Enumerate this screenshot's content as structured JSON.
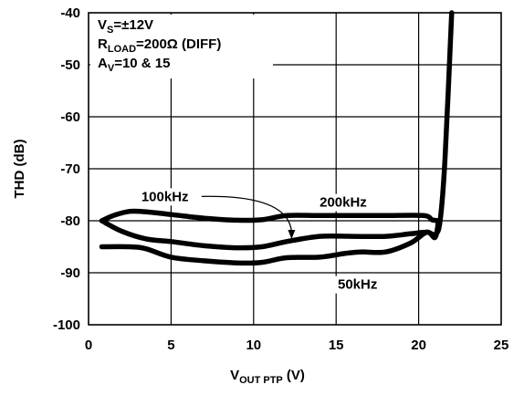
{
  "chart_data": {
    "type": "line",
    "xlabel": {
      "main": "V",
      "sub": "OUT PTP",
      "tail": " (V)"
    },
    "ylabel": "THD (dB)",
    "xlim": [
      0,
      25
    ],
    "ylim": [
      -100,
      -40
    ],
    "xticks": [
      0,
      5,
      10,
      15,
      20,
      25
    ],
    "yticks": [
      -40,
      -50,
      -60,
      -70,
      -80,
      -90,
      -100
    ],
    "xtick_labels": [
      "0",
      "5",
      "10",
      "15",
      "20",
      "25"
    ],
    "ytick_labels": [
      "-40",
      "-50",
      "-60",
      "-70",
      "-80",
      "-90",
      "-100"
    ],
    "grid": true,
    "conditions": [
      {
        "main": "V",
        "sub": "S",
        "tail": "=±12V"
      },
      {
        "main": "R",
        "sub": "LOAD",
        "tail": "=200Ω (DIFF)"
      },
      {
        "main": "A",
        "sub": "V",
        "tail": "=10 & 15"
      }
    ],
    "series": [
      {
        "name": "100kHz",
        "x": [
          0.8,
          1.5,
          2.5,
          3.5,
          5,
          7,
          9,
          10.5,
          12,
          14,
          16,
          18,
          20.3,
          20.8,
          21.2
        ],
        "y": [
          -80,
          -79,
          -78.2,
          -78.3,
          -78.8,
          -79.5,
          -79.9,
          -79.8,
          -79,
          -79,
          -79,
          -79,
          -79,
          -79.8,
          -80
        ]
      },
      {
        "name": "200kHz",
        "x": [
          0.8,
          2,
          3.5,
          5,
          7,
          9,
          10.5,
          12,
          14,
          16,
          18,
          19.5,
          20.5,
          21.0,
          21.3,
          21.6,
          22.0
        ],
        "y": [
          -80,
          -82,
          -83.5,
          -84,
          -84.8,
          -85.2,
          -85,
          -84,
          -83,
          -83,
          -83,
          -82.5,
          -82.2,
          -82.6,
          -80,
          -68,
          -40
        ]
      },
      {
        "name": "50kHz",
        "x": [
          0.8,
          2.5,
          3.5,
          5,
          7,
          9,
          10.5,
          12,
          14,
          15.5,
          16.5,
          18,
          19.5,
          20.5,
          21.0,
          21.2
        ],
        "y": [
          -85,
          -85,
          -85.4,
          -87,
          -87.7,
          -88.1,
          -88,
          -87.1,
          -87,
          -86.3,
          -86,
          -86,
          -84.3,
          -82.2,
          -83.2,
          -80
        ]
      }
    ],
    "annotations": [
      {
        "text": "100kHz",
        "x": 3.2,
        "y": -76.2
      },
      {
        "text": "200kHz",
        "x": 14.0,
        "y": -77.3
      },
      {
        "text": "50kHz",
        "x": 15.1,
        "y": -93.1
      }
    ]
  }
}
